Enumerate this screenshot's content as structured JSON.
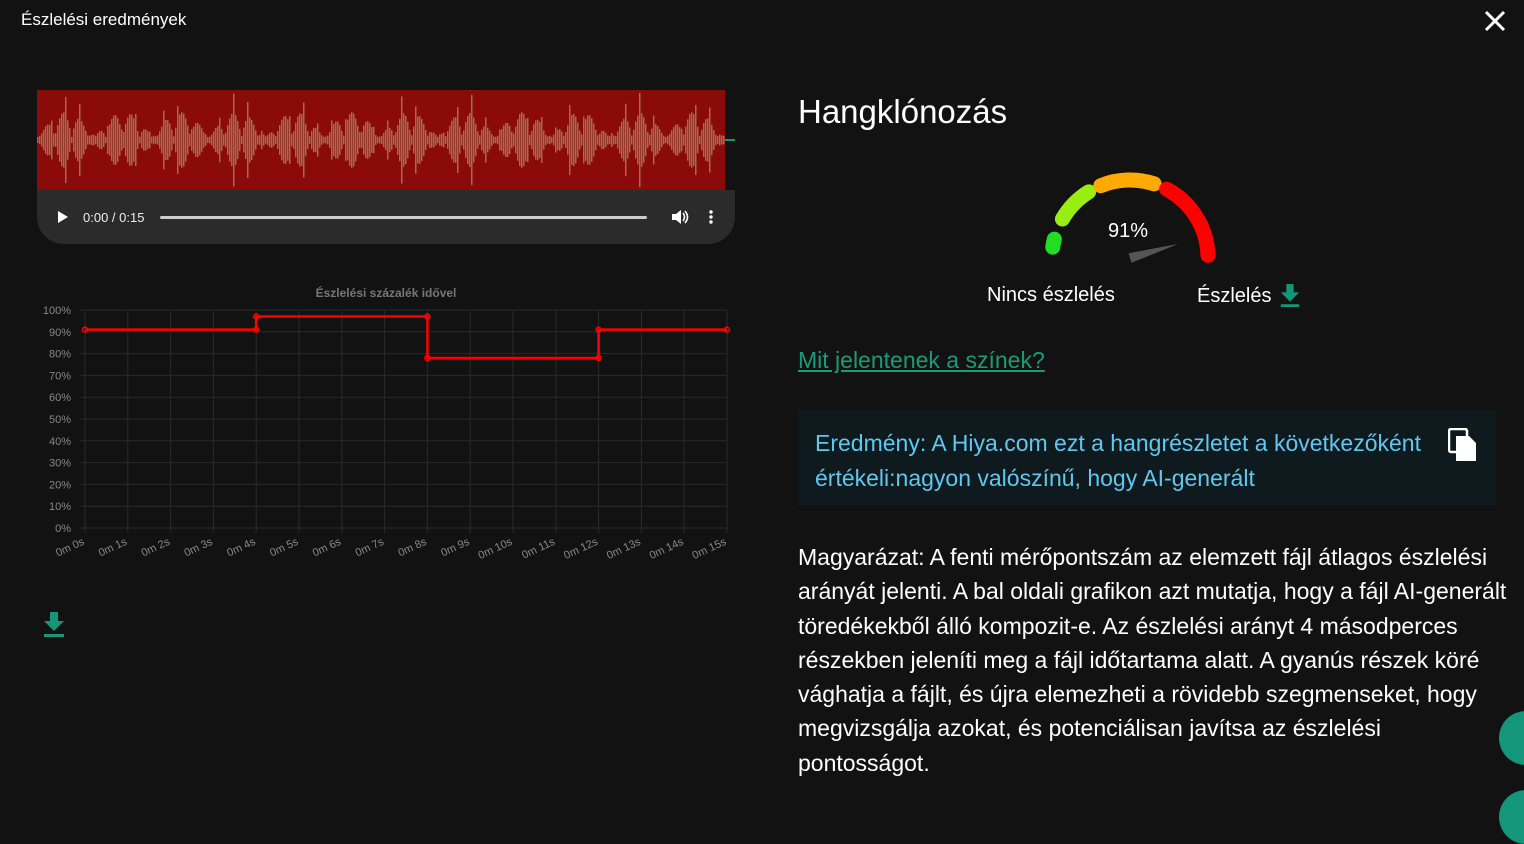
{
  "header": {
    "title": "Észlelési eredmények",
    "close_icon": "close-icon"
  },
  "player": {
    "time": "0:00 / 0:15",
    "progress": 0,
    "wave_color": "#8b0a0a"
  },
  "chart_data": {
    "type": "line",
    "title": "Észlelési százalék idővel",
    "stepped": true,
    "x": [
      0,
      4,
      4,
      8,
      8,
      12,
      12,
      15
    ],
    "y": [
      91,
      91,
      97,
      97,
      78,
      78,
      91,
      91
    ],
    "xticks": [
      "0m 0s",
      "0m 1s",
      "0m 2s",
      "0m 3s",
      "0m 4s",
      "0m 5s",
      "0m 6s",
      "0m 7s",
      "0m 8s",
      "0m 9s",
      "0m 10s",
      "0m 11s",
      "0m 12s",
      "0m 13s",
      "0m 14s",
      "0m 15s"
    ],
    "yticks": [
      "0%",
      "10%",
      "20%",
      "30%",
      "40%",
      "50%",
      "60%",
      "70%",
      "80%",
      "90%",
      "100%"
    ],
    "xlim": [
      0,
      15
    ],
    "ylim": [
      0,
      100
    ],
    "grid": true,
    "color": "#ff0000"
  },
  "result": {
    "heading": "Hangklónozás",
    "gauge_value": 91,
    "gauge_label": "91%",
    "label_no": "Nincs észlelés",
    "label_yes": "Észlelés",
    "colors_link": "Mit jelentenek a színek?",
    "result_text": "Eredmény: A Hiya.com ezt a hangrészletet a következőként értékeli:nagyon valószínű, hogy AI-generált",
    "explanation": "Magyarázat: A fenti mérőpontszám az elemzett fájl átlagos észlelési arányát jelenti. A bal oldali grafikon azt mutatja, hogy a fájl AI-generált töredékekből álló kompozit-e. Az észlelési arányt 4 másodperces részekben jeleníti meg a fájl időtartama alatt. A gyanús részek köré vághatja a fájlt, és újra elemezheti a rövidebb szegmenseket, hogy megvizsgálja azokat, és potenciálisan javítsa az észlelési pontosságot.",
    "accent": "#14967a"
  }
}
